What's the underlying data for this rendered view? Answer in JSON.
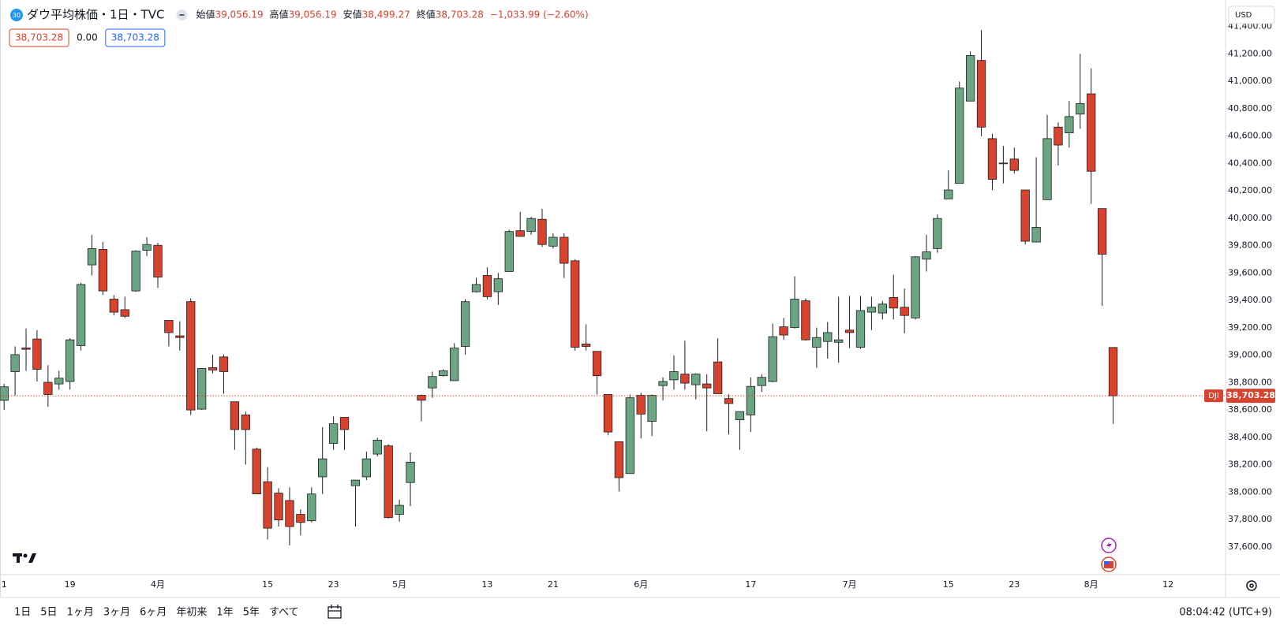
{
  "chart_data": {
    "type": "candlestick",
    "badge": "30",
    "title": "ダウ平均株価・1日・TVC",
    "ohlc_header": [
      {
        "label": "始値",
        "value": "39,056.19"
      },
      {
        "label": "高値",
        "value": "39,056.19"
      },
      {
        "label": "安値",
        "value": "38,499.27"
      },
      {
        "label": "終値",
        "value": "38,703.28"
      }
    ],
    "change": "−1,033.99 (−2.60%)",
    "indicator_badges": [
      "38,703.28",
      "0.00",
      "38,703.28"
    ],
    "currency": "USD",
    "symbol": "DJI",
    "last_price_label": "38,703.28",
    "up_color": "#6ba583",
    "down_color": "#d8432f",
    "border_color": "#1e1e1e",
    "last_line_color": "#d8432f",
    "grid": false,
    "categories": [
      "1",
      null,
      null,
      null,
      null,
      null,
      "19",
      null,
      null,
      null,
      null,
      null,
      null,
      null,
      "4月",
      null,
      null,
      null,
      null,
      null,
      null,
      null,
      null,
      null,
      "15",
      null,
      null,
      null,
      null,
      null,
      "23",
      null,
      null,
      null,
      null,
      null,
      "5月",
      null,
      null,
      null,
      null,
      null,
      null,
      null,
      "13",
      null,
      null,
      null,
      null,
      null,
      "21",
      null,
      null,
      null,
      null,
      null,
      null,
      null,
      "6月",
      null,
      null,
      null,
      null,
      null,
      null,
      null,
      null,
      null,
      "17",
      null,
      null,
      null,
      null,
      null,
      null,
      null,
      null,
      "7月",
      null,
      null,
      null,
      null,
      null,
      null,
      null,
      null,
      "15",
      null,
      null,
      null,
      null,
      null,
      "23",
      null,
      null,
      null,
      null,
      null,
      null,
      "8月",
      null,
      null
    ],
    "future_categories": [
      null,
      null,
      null,
      null,
      "12"
    ],
    "series": [
      {
        "name": "DJI",
        "open": [
          38670,
          38880,
          39053,
          39118,
          38802,
          38790,
          38808,
          39070,
          39659,
          39772,
          39409,
          39332,
          39469,
          39766,
          39802,
          39254,
          39141,
          39391,
          38606,
          38909,
          38987,
          38660,
          38564,
          38314,
          38076,
          37993,
          37939,
          37838,
          37791,
          38112,
          38356,
          38546,
          38047,
          38112,
          38278,
          38338,
          37838,
          38070,
          38707,
          38761,
          38850,
          38814,
          39064,
          39463,
          39582,
          39463,
          39611,
          39909,
          39903,
          39992,
          39796,
          39861,
          39689,
          39082,
          39028,
          38713,
          38368,
          38136,
          38707,
          38517,
          38778,
          38820,
          38862,
          38784,
          38790,
          38951,
          38683,
          38528,
          38564,
          38778,
          38808,
          39207,
          39201,
          39397,
          39058,
          39100,
          39094,
          39183,
          39058,
          39314,
          39308,
          39421,
          39350,
          39272,
          39701,
          39778,
          40141,
          40254,
          40855,
          41152,
          40581,
          40397,
          40432,
          40206,
          39826,
          40135,
          40665,
          40623,
          40760,
          40908,
          40070,
          39056.19
        ],
        "high": [
          38790,
          39064,
          39195,
          39183,
          38927,
          38886,
          39124,
          39528,
          39879,
          39826,
          39439,
          39427,
          39766,
          39861,
          39820,
          39254,
          39248,
          39415,
          38903,
          39004,
          39004,
          38660,
          38588,
          38326,
          38183,
          38029,
          38035,
          37874,
          38035,
          38475,
          38552,
          38546,
          38088,
          38296,
          38398,
          38350,
          37945,
          38290,
          38713,
          38880,
          38897,
          39088,
          39409,
          39564,
          39641,
          39600,
          39915,
          40046,
          40010,
          40069,
          39891,
          39891,
          39701,
          39225,
          39028,
          38713,
          38368,
          38713,
          38725,
          38713,
          38838,
          38999,
          39106,
          38868,
          38862,
          39124,
          38713,
          38588,
          38838,
          38862,
          39231,
          39272,
          39576,
          39415,
          39201,
          39243,
          39427,
          39433,
          39433,
          39427,
          39397,
          39588,
          39486,
          39724,
          39879,
          40028,
          40349,
          40998,
          41218,
          41373,
          40617,
          40528,
          40516,
          40206,
          40445,
          40754,
          40700,
          40855,
          41200,
          41093,
          40070,
          39056.19
        ],
        "low": [
          38600,
          38707,
          38886,
          38808,
          38624,
          38749,
          38749,
          39034,
          39582,
          39439,
          39290,
          39272,
          39463,
          39724,
          39492,
          39064,
          39034,
          38564,
          38600,
          38868,
          38719,
          38308,
          38201,
          37987,
          37654,
          37749,
          37612,
          37684,
          37779,
          37987,
          38308,
          38308,
          37749,
          38088,
          38261,
          37808,
          37785,
          37898,
          38517,
          38689,
          38844,
          38814,
          39004,
          39457,
          39409,
          39367,
          39611,
          39867,
          39879,
          39790,
          39778,
          39564,
          39034,
          39034,
          38713,
          38415,
          38005,
          38136,
          38392,
          38409,
          38671,
          38749,
          38749,
          38677,
          38445,
          38719,
          38421,
          38308,
          38439,
          38731,
          38802,
          39112,
          39195,
          39106,
          38909,
          38975,
          38945,
          39052,
          39046,
          39183,
          39261,
          39261,
          39159,
          39261,
          39611,
          39748,
          40141,
          40254,
          40855,
          40599,
          40206,
          40254,
          40325,
          39808,
          39826,
          40135,
          40385,
          40516,
          40653,
          40105,
          39361,
          38499.27
        ],
        "close": [
          38769,
          39004,
          39043,
          38897,
          38713,
          38832,
          39112,
          39516,
          39778,
          39469,
          39314,
          39284,
          39760,
          39808,
          39570,
          39165,
          39129,
          38600,
          38903,
          38892,
          38880,
          38457,
          38457,
          37987,
          37737,
          37797,
          37749,
          37779,
          37987,
          38243,
          38499,
          38457,
          38088,
          38243,
          38380,
          37814,
          37904,
          38219,
          38671,
          38844,
          38886,
          39052,
          39391,
          39516,
          39427,
          39558,
          39903,
          39867,
          39998,
          39808,
          39861,
          39671,
          39058,
          39064,
          38850,
          38439,
          38106,
          38689,
          38570,
          38707,
          38808,
          38880,
          38796,
          38862,
          38761,
          38719,
          38647,
          38588,
          38772,
          38838,
          39135,
          39147,
          39409,
          39112,
          39129,
          39165,
          39112,
          39165,
          39326,
          39350,
          39373,
          39344,
          39290,
          39718,
          39754,
          39998,
          40206,
          40950,
          41188,
          40665,
          40284,
          40403,
          40349,
          39832,
          39933,
          40581,
          40534,
          40742,
          40837,
          40343,
          39737,
          38703.28
        ]
      }
    ],
    "ylim": [
      37398,
      41593
    ],
    "yticks": [
      {
        "value": 37600,
        "label": "37,600.00"
      },
      {
        "value": 37800,
        "label": "37,800.00"
      },
      {
        "value": 38000,
        "label": "38,000.00"
      },
      {
        "value": 38200,
        "label": "38,200.00"
      },
      {
        "value": 38400,
        "label": "38,400.00"
      },
      {
        "value": 38600,
        "label": "38,600.00"
      },
      {
        "value": 38800,
        "label": "38,800.00"
      },
      {
        "value": 39000,
        "label": "39,000.00"
      },
      {
        "value": 39200,
        "label": "39,200.00"
      },
      {
        "value": 39400,
        "label": "39,400.00"
      },
      {
        "value": 39600,
        "label": "39,600.00"
      },
      {
        "value": 39800,
        "label": "39,800.00"
      },
      {
        "value": 40000,
        "label": "40,000.00"
      },
      {
        "value": 40200,
        "label": "40,200.00"
      },
      {
        "value": 40400,
        "label": "40,400.00"
      },
      {
        "value": 40600,
        "label": "40,600.00"
      },
      {
        "value": 40800,
        "label": "40,800.00"
      },
      {
        "value": 41000,
        "label": "41,000.00"
      },
      {
        "value": 41200,
        "label": "41,200.00"
      },
      {
        "value": 41400,
        "label": "41,400.00"
      }
    ],
    "range_buttons": [
      "1日",
      "5日",
      "1ヶ月",
      "3ヶ月",
      "6ヶ月",
      "年初来",
      "1年",
      "5年",
      "すべて"
    ],
    "clock": "08:04:42 (UTC+9)"
  }
}
